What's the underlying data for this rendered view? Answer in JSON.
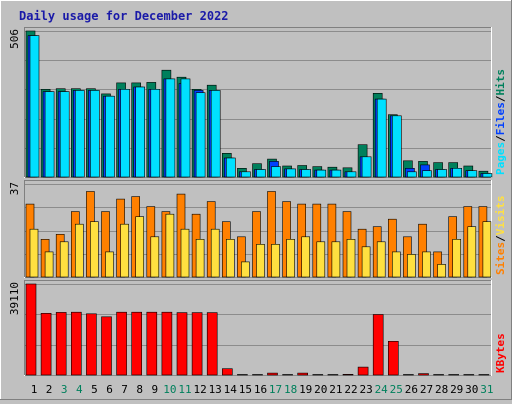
{
  "title": "Daily usage for December 2022",
  "colors": {
    "background": "#c0c0c0",
    "title": "#1a1aa8",
    "panel": "#c0c0c0",
    "grid": "#8c8c8c",
    "hits": "#00805c",
    "files": "#0040ff",
    "pages": "#00e0ff",
    "visits": "#ffe040",
    "sites": "#ff8000",
    "kbytes": "#ff0000",
    "weekend_label": "#00805c",
    "weekday_label": "#000000",
    "slash": "#000000"
  },
  "legend": {
    "top": [
      "Pages",
      "/",
      "Files",
      "/",
      "Hits"
    ],
    "middle": [
      "Sites",
      "/",
      "Visits"
    ],
    "bottom": [
      "KBytes"
    ]
  },
  "chart_data": {
    "type": "bar",
    "categories": [
      "1",
      "2",
      "3",
      "4",
      "5",
      "6",
      "7",
      "8",
      "9",
      "10",
      "11",
      "12",
      "13",
      "14",
      "15",
      "16",
      "17",
      "18",
      "19",
      "20",
      "21",
      "22",
      "23",
      "24",
      "25",
      "26",
      "27",
      "28",
      "29",
      "30",
      "31"
    ],
    "weekend_days": [
      "3",
      "4",
      "10",
      "11",
      "17",
      "18",
      "24",
      "25",
      "31"
    ],
    "panels": [
      {
        "id": "top",
        "ymax_label": "506",
        "ymax": 506,
        "series": [
          {
            "name": "Hits",
            "values": [
              506,
              304,
              306,
              306,
              306,
              288,
              326,
              326,
              328,
              370,
              346,
              304,
              318,
              82,
              30,
              46,
              62,
              38,
              40,
              36,
              34,
              32,
              112,
              290,
              216,
              56,
              54,
              50,
              50,
              38,
              20
            ]
          },
          {
            "name": "Files",
            "values": [
              490,
              296,
              296,
              300,
              300,
              280,
              304,
              312,
              304,
              340,
              324,
              300,
              300,
              66,
              18,
              26,
              54,
              28,
              26,
              24,
              24,
              18,
              70,
              270,
              212,
              30,
              42,
              26,
              30,
              22,
              12
            ]
          },
          {
            "name": "Pages",
            "values": [
              490,
              296,
              296,
              300,
              300,
              280,
              304,
              312,
              304,
              340,
              340,
              292,
              300,
              66,
              18,
              26,
              36,
              28,
              26,
              24,
              24,
              18,
              70,
              270,
              212,
              18,
              22,
              26,
              30,
              22,
              12
            ]
          }
        ]
      },
      {
        "id": "middle",
        "ymax_label": "37",
        "ymax": 37,
        "series": [
          {
            "name": "Sites",
            "values": [
              29,
              15,
              17,
              26,
              34,
              26,
              31,
              32,
              28,
              26,
              33,
              25,
              30,
              22,
              16,
              26,
              34,
              30,
              29,
              29,
              29,
              26,
              19,
              20,
              23,
              16,
              21,
              10,
              24,
              28,
              28
            ]
          },
          {
            "name": "Visits",
            "values": [
              19,
              10,
              14,
              21,
              22,
              10,
              21,
              24,
              16,
              25,
              19,
              15,
              19,
              15,
              6,
              13,
              13,
              15,
              16,
              14,
              14,
              15,
              12,
              14,
              10,
              9,
              10,
              5,
              15,
              20,
              22
            ]
          }
        ]
      },
      {
        "id": "bottom",
        "ymax_label": "39110",
        "ymax": 39110,
        "series": [
          {
            "name": "KBytes",
            "values": [
              39110,
              26500,
              26900,
              27000,
              26300,
              25000,
              27000,
              27000,
              27000,
              27000,
              26800,
              26800,
              26800,
              2700,
              200,
              200,
              800,
              200,
              800,
              200,
              200,
              300,
              3400,
              26000,
              14500,
              200,
              600,
              200,
              200,
              200,
              200
            ]
          }
        ]
      }
    ]
  }
}
